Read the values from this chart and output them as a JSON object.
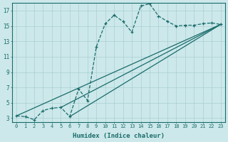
{
  "xlabel": "Humidex (Indice chaleur)",
  "background_color": "#cce8ea",
  "grid_color": "#aacfd2",
  "line_color": "#1a6b6b",
  "xlim": [
    -0.5,
    23.5
  ],
  "ylim": [
    2.5,
    18.0
  ],
  "xticks": [
    0,
    1,
    2,
    3,
    4,
    5,
    6,
    7,
    8,
    9,
    10,
    11,
    12,
    13,
    14,
    15,
    16,
    17,
    18,
    19,
    20,
    21,
    22,
    23
  ],
  "yticks": [
    3,
    5,
    7,
    9,
    11,
    13,
    15,
    17
  ],
  "curve_x": [
    0,
    1,
    2,
    3,
    4,
    5,
    6,
    7,
    8,
    9,
    10,
    11,
    12,
    13,
    14,
    15,
    16,
    17,
    18,
    19,
    20,
    21,
    22,
    23
  ],
  "curve_y": [
    3.3,
    3.2,
    2.8,
    4.0,
    4.3,
    4.4,
    3.2,
    6.8,
    5.3,
    12.3,
    15.3,
    16.4,
    15.6,
    14.2,
    17.6,
    17.9,
    16.3,
    15.6,
    15.0,
    15.1,
    15.1,
    15.3,
    15.4,
    15.2
  ],
  "line1": [
    [
      0,
      3.3
    ],
    [
      23,
      15.2
    ]
  ],
  "line2": [
    [
      5,
      4.4
    ],
    [
      23,
      15.2
    ]
  ],
  "line3": [
    [
      6,
      3.2
    ],
    [
      23,
      15.2
    ]
  ]
}
